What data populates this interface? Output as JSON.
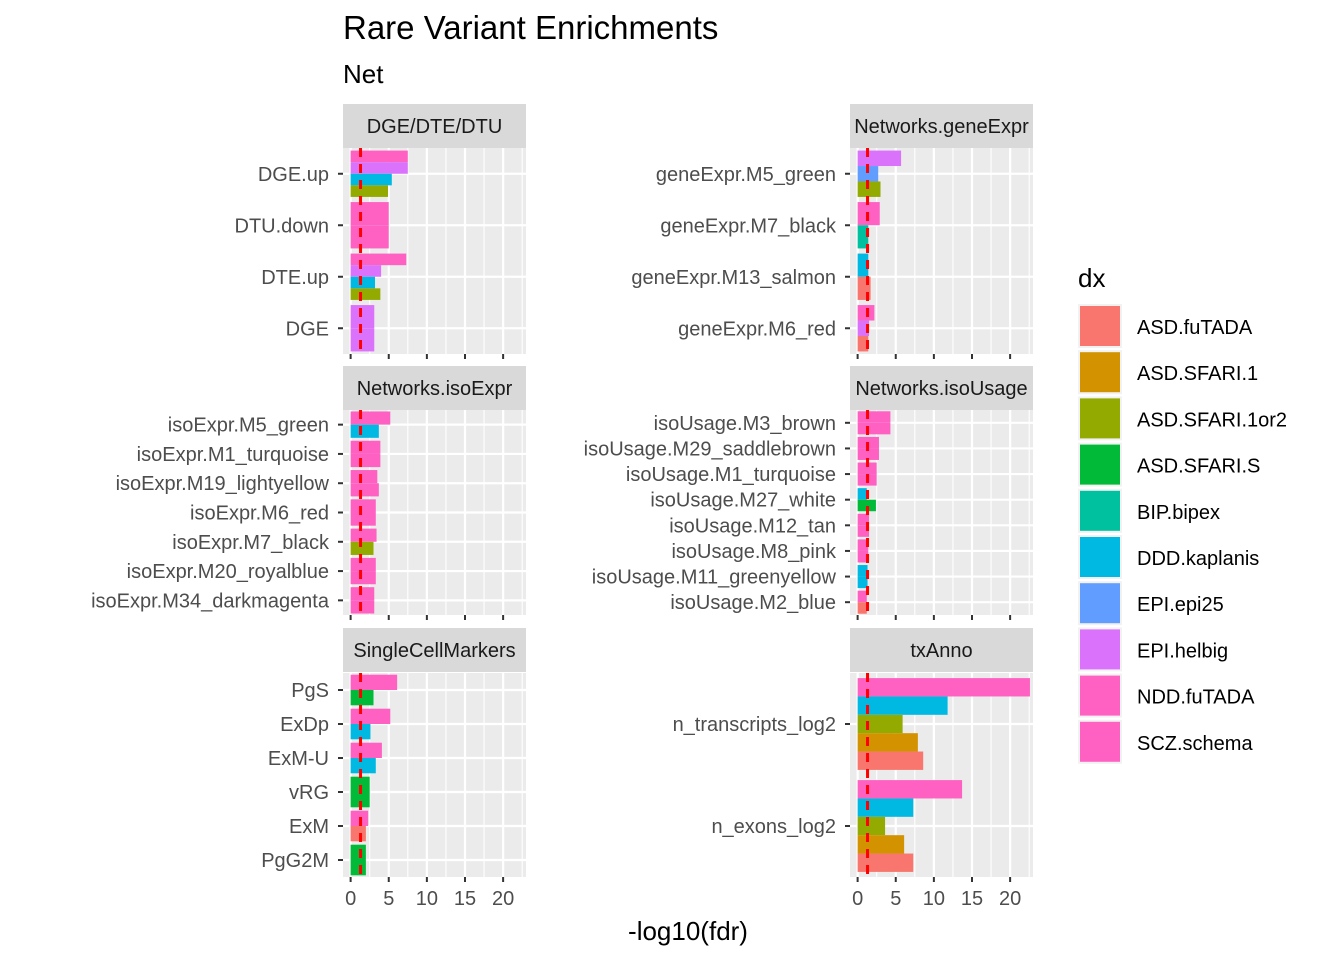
{
  "chart_data": {
    "type": "bar",
    "orientation": "horizontal",
    "title": "Rare Variant Enrichments",
    "subtitle": "Net",
    "xlabel": "-log10(fdr)",
    "ylabel": "",
    "xlim": [
      -1,
      23
    ],
    "x_ticks": [
      0,
      5,
      10,
      15,
      20
    ],
    "reference_line": 1.3,
    "legend": {
      "title": "dx",
      "placement": "right",
      "entries": [
        {
          "name": "ASD.fuTADA",
          "color": "#F8766D"
        },
        {
          "name": "ASD.SFARI.1",
          "color": "#D39200"
        },
        {
          "name": "ASD.SFARI.1or2",
          "color": "#93AA00"
        },
        {
          "name": "ASD.SFARI.S",
          "color": "#00BA38"
        },
        {
          "name": "BIP.bipex",
          "color": "#00C19F"
        },
        {
          "name": "DDD.kaplanis",
          "color": "#00B9E3"
        },
        {
          "name": "EPI.epi25",
          "color": "#619CFF"
        },
        {
          "name": "EPI.helbig",
          "color": "#DB72FB"
        },
        {
          "name": "NDD.fuTADA",
          "color": "#FF61C3"
        },
        {
          "name": "SCZ.schema",
          "color": "#FF61C3"
        }
      ]
    },
    "facets": [
      {
        "strip": "DGE/DTE/DTU",
        "categories": [
          {
            "label": "DGE.up",
            "bars": [
              {
                "dx": "NDD.fuTADA",
                "value": 7.5
              },
              {
                "dx": "EPI.helbig",
                "value": 7.5
              },
              {
                "dx": "DDD.kaplanis",
                "value": 5.4
              },
              {
                "dx": "ASD.SFARI.1or2",
                "value": 4.9
              }
            ]
          },
          {
            "label": "DTU.down",
            "bars": [
              {
                "dx": "NDD.fuTADA",
                "value": 5.0
              },
              {
                "dx": "NDD.fuTADA",
                "value": 5.0
              }
            ]
          },
          {
            "label": "DTE.up",
            "bars": [
              {
                "dx": "NDD.fuTADA",
                "value": 7.3
              },
              {
                "dx": "EPI.helbig",
                "value": 4.0
              },
              {
                "dx": "DDD.kaplanis",
                "value": 3.2
              },
              {
                "dx": "ASD.SFARI.1or2",
                "value": 3.9
              }
            ]
          },
          {
            "label": "DGE",
            "bars": [
              {
                "dx": "EPI.helbig",
                "value": 3.1
              },
              {
                "dx": "EPI.helbig",
                "value": 3.1
              }
            ]
          }
        ]
      },
      {
        "strip": "Networks.geneExpr",
        "categories": [
          {
            "label": "geneExpr.M5_green",
            "bars": [
              {
                "dx": "EPI.helbig",
                "value": 5.7
              },
              {
                "dx": "EPI.epi25",
                "value": 2.7
              },
              {
                "dx": "ASD.SFARI.1or2",
                "value": 3.0
              }
            ]
          },
          {
            "label": "geneExpr.M7_black",
            "bars": [
              {
                "dx": "NDD.fuTADA",
                "value": 2.9
              },
              {
                "dx": "BIP.bipex",
                "value": 1.4
              }
            ]
          },
          {
            "label": "geneExpr.M13_salmon",
            "bars": [
              {
                "dx": "DDD.kaplanis",
                "value": 1.4
              },
              {
                "dx": "ASD.fuTADA",
                "value": 1.7
              }
            ]
          },
          {
            "label": "geneExpr.M6_red",
            "bars": [
              {
                "dx": "NDD.fuTADA",
                "value": 2.2
              },
              {
                "dx": "EPI.helbig",
                "value": 1.5
              },
              {
                "dx": "ASD.fuTADA",
                "value": 1.4
              }
            ]
          }
        ]
      },
      {
        "strip": "Networks.isoExpr",
        "categories": [
          {
            "label": "isoExpr.M5_green",
            "bars": [
              {
                "dx": "NDD.fuTADA",
                "value": 5.2
              },
              {
                "dx": "DDD.kaplanis",
                "value": 3.7
              }
            ]
          },
          {
            "label": "isoExpr.M1_turquoise",
            "bars": [
              {
                "dx": "NDD.fuTADA",
                "value": 3.9
              },
              {
                "dx": "NDD.fuTADA",
                "value": 3.9
              }
            ]
          },
          {
            "label": "isoExpr.M19_lightyellow",
            "bars": [
              {
                "dx": "SCZ.schema",
                "value": 3.5
              },
              {
                "dx": "NDD.fuTADA",
                "value": 3.7
              }
            ]
          },
          {
            "label": "isoExpr.M6_red",
            "bars": [
              {
                "dx": "NDD.fuTADA",
                "value": 3.3
              },
              {
                "dx": "NDD.fuTADA",
                "value": 3.3
              }
            ]
          },
          {
            "label": "isoExpr.M7_black",
            "bars": [
              {
                "dx": "NDD.fuTADA",
                "value": 3.4
              },
              {
                "dx": "ASD.SFARI.1or2",
                "value": 3.0
              }
            ]
          },
          {
            "label": "isoExpr.M20_royalblue",
            "bars": [
              {
                "dx": "NDD.fuTADA",
                "value": 3.3
              },
              {
                "dx": "NDD.fuTADA",
                "value": 3.3
              }
            ]
          },
          {
            "label": "isoExpr.M34_darkmagenta",
            "bars": [
              {
                "dx": "NDD.fuTADA",
                "value": 3.1
              },
              {
                "dx": "NDD.fuTADA",
                "value": 3.1
              }
            ]
          }
        ]
      },
      {
        "strip": "Networks.isoUsage",
        "categories": [
          {
            "label": "isoUsage.M3_brown",
            "bars": [
              {
                "dx": "NDD.fuTADA",
                "value": 4.3
              },
              {
                "dx": "NDD.fuTADA",
                "value": 4.3
              }
            ]
          },
          {
            "label": "isoUsage.M29_saddlebrown",
            "bars": [
              {
                "dx": "NDD.fuTADA",
                "value": 2.8
              },
              {
                "dx": "NDD.fuTADA",
                "value": 2.8
              }
            ]
          },
          {
            "label": "isoUsage.M1_turquoise",
            "bars": [
              {
                "dx": "NDD.fuTADA",
                "value": 2.5
              },
              {
                "dx": "NDD.fuTADA",
                "value": 2.5
              }
            ]
          },
          {
            "label": "isoUsage.M27_white",
            "bars": [
              {
                "dx": "DDD.kaplanis",
                "value": 1.2
              },
              {
                "dx": "ASD.SFARI.S",
                "value": 2.4
              }
            ]
          },
          {
            "label": "isoUsage.M12_tan",
            "bars": [
              {
                "dx": "NDD.fuTADA",
                "value": 1.5
              },
              {
                "dx": "NDD.fuTADA",
                "value": 1.5
              }
            ]
          },
          {
            "label": "isoUsage.M8_pink",
            "bars": [
              {
                "dx": "NDD.fuTADA",
                "value": 1.4
              },
              {
                "dx": "NDD.fuTADA",
                "value": 1.4
              }
            ]
          },
          {
            "label": "isoUsage.M11_greenyellow",
            "bars": [
              {
                "dx": "DDD.kaplanis",
                "value": 1.3
              },
              {
                "dx": "DDD.kaplanis",
                "value": 1.3
              }
            ]
          },
          {
            "label": "isoUsage.M2_blue",
            "bars": [
              {
                "dx": "NDD.fuTADA",
                "value": 1.2
              },
              {
                "dx": "ASD.fuTADA",
                "value": 1.2
              }
            ]
          }
        ]
      },
      {
        "strip": "SingleCellMarkers",
        "categories": [
          {
            "label": "PgS",
            "bars": [
              {
                "dx": "NDD.fuTADA",
                "value": 6.1
              },
              {
                "dx": "ASD.SFARI.S",
                "value": 3.0
              }
            ]
          },
          {
            "label": "ExDp",
            "bars": [
              {
                "dx": "NDD.fuTADA",
                "value": 5.2
              },
              {
                "dx": "DDD.kaplanis",
                "value": 2.6
              }
            ]
          },
          {
            "label": "ExM-U",
            "bars": [
              {
                "dx": "NDD.fuTADA",
                "value": 4.1
              },
              {
                "dx": "DDD.kaplanis",
                "value": 3.3
              }
            ]
          },
          {
            "label": "vRG",
            "bars": [
              {
                "dx": "ASD.SFARI.S",
                "value": 2.5
              },
              {
                "dx": "ASD.SFARI.S",
                "value": 2.5
              }
            ]
          },
          {
            "label": "ExM",
            "bars": [
              {
                "dx": "NDD.fuTADA",
                "value": 2.3
              },
              {
                "dx": "ASD.fuTADA",
                "value": 2.0
              }
            ]
          },
          {
            "label": "PgG2M",
            "bars": [
              {
                "dx": "ASD.SFARI.S",
                "value": 2.0
              },
              {
                "dx": "ASD.SFARI.S",
                "value": 2.0
              }
            ]
          }
        ]
      },
      {
        "strip": "txAnno",
        "categories": [
          {
            "label": "n_transcripts_log2",
            "bars": [
              {
                "dx": "NDD.fuTADA",
                "value": 22.6
              },
              {
                "dx": "DDD.kaplanis",
                "value": 11.8
              },
              {
                "dx": "ASD.SFARI.1or2",
                "value": 5.9
              },
              {
                "dx": "ASD.SFARI.1",
                "value": 7.9
              },
              {
                "dx": "ASD.fuTADA",
                "value": 8.6
              }
            ]
          },
          {
            "label": "n_exons_log2",
            "bars": [
              {
                "dx": "NDD.fuTADA",
                "value": 13.7
              },
              {
                "dx": "DDD.kaplanis",
                "value": 7.3
              },
              {
                "dx": "ASD.SFARI.1or2",
                "value": 3.6
              },
              {
                "dx": "ASD.SFARI.1",
                "value": 6.1
              },
              {
                "dx": "ASD.fuTADA",
                "value": 7.3
              }
            ]
          }
        ]
      }
    ]
  }
}
